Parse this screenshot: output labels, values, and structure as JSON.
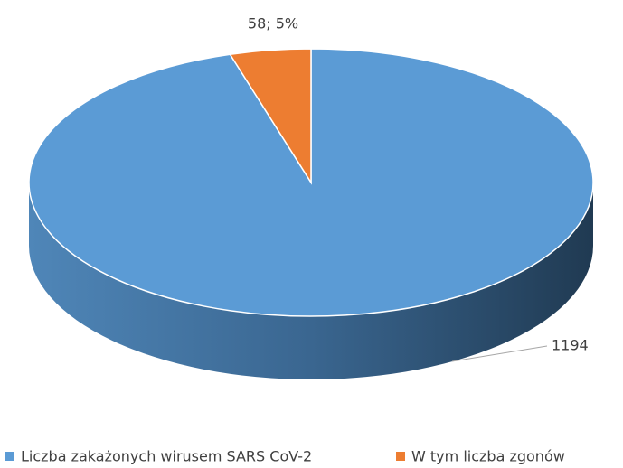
{
  "chart_data": {
    "type": "pie",
    "categories": [
      "Liczba zakażonych wirusem SARS CoV-2",
      "W tym liczba zgonów"
    ],
    "values": [
      1194,
      58
    ],
    "value_labels": [
      "1194",
      "58; 5%"
    ],
    "colors": [
      "#5b9bd5",
      "#ed7d31"
    ],
    "legend": "bottom"
  }
}
